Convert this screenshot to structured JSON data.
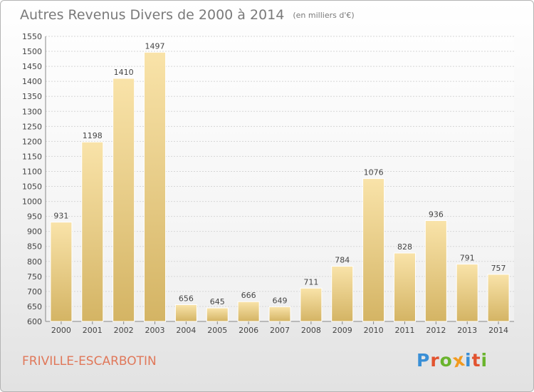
{
  "title": "Autres Revenus Divers de 2000 à 2014",
  "subtitle": "(en milliers d'€)",
  "commune": "FRIVILLE-ESCARBOTIN",
  "logo": {
    "text": "Proxiti",
    "letter_colors": [
      "#3a8fd6",
      "#e2532f",
      "#6ab42d",
      "#f29a1f",
      "#3a8fd6",
      "#e2532f",
      "#6ab42d"
    ]
  },
  "colors": {
    "bar_light": "#f9e3a9",
    "bar_dark": "#d4b464",
    "grid": "#d6d6d6",
    "axis_text": "#444444",
    "commune": "#e0785a",
    "title": "#7a7a7a"
  },
  "chart_data": {
    "type": "bar",
    "categories": [
      "2000",
      "2001",
      "2002",
      "2003",
      "2004",
      "2005",
      "2006",
      "2007",
      "2008",
      "2009",
      "2010",
      "2011",
      "2012",
      "2013",
      "2014"
    ],
    "values": [
      931,
      1198,
      1410,
      1497,
      656,
      645,
      666,
      649,
      711,
      784,
      1076,
      828,
      936,
      791,
      757
    ],
    "ylim": [
      600,
      1550
    ],
    "ytick_step": 50,
    "grid": true,
    "data_labels": true
  }
}
